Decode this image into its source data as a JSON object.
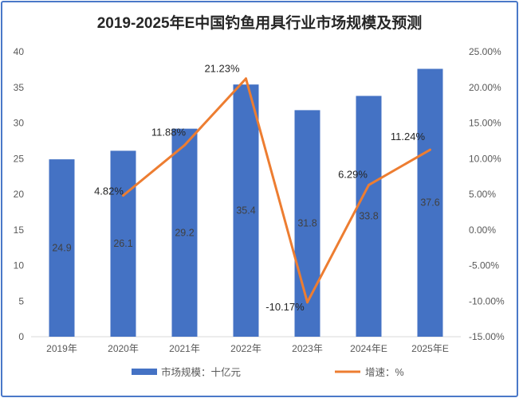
{
  "chart_data": {
    "type": "bar+line",
    "title": "2019-2025年E中国钓鱼用具行业市场规模及预测",
    "categories": [
      "2019年",
      "2020年",
      "2021年",
      "2022年",
      "2023年",
      "2024年E",
      "2025年E"
    ],
    "series": [
      {
        "name": "市场规模：十亿元",
        "type": "bar",
        "axis": "left",
        "color": "#4472C4",
        "values": [
          24.9,
          26.1,
          29.2,
          35.4,
          31.8,
          33.8,
          37.6
        ],
        "labels": [
          "24.9",
          "26.1",
          "29.2",
          "35.4",
          "31.8",
          "33.8",
          "37.6"
        ]
      },
      {
        "name": "增速：%",
        "type": "line",
        "axis": "right",
        "color": "#ED7D31",
        "values": [
          null,
          4.82,
          11.88,
          21.23,
          -10.17,
          6.29,
          11.24
        ],
        "labels": [
          "",
          "4.82%",
          "11.88%",
          "21.23%",
          "-10.17%",
          "6.29%",
          "11.24%"
        ]
      }
    ],
    "left_axis": {
      "ylim": [
        0,
        40
      ],
      "ticks": [
        "0",
        "5",
        "10",
        "15",
        "20",
        "25",
        "30",
        "35",
        "40"
      ]
    },
    "right_axis": {
      "ylim": [
        -15,
        25
      ],
      "ticks": [
        "-15.00%",
        "-10.00%",
        "-5.00%",
        "0.00%",
        "5.00%",
        "10.00%",
        "15.00%",
        "20.00%",
        "25.00%"
      ]
    },
    "grid": false,
    "legend": "bottom"
  }
}
